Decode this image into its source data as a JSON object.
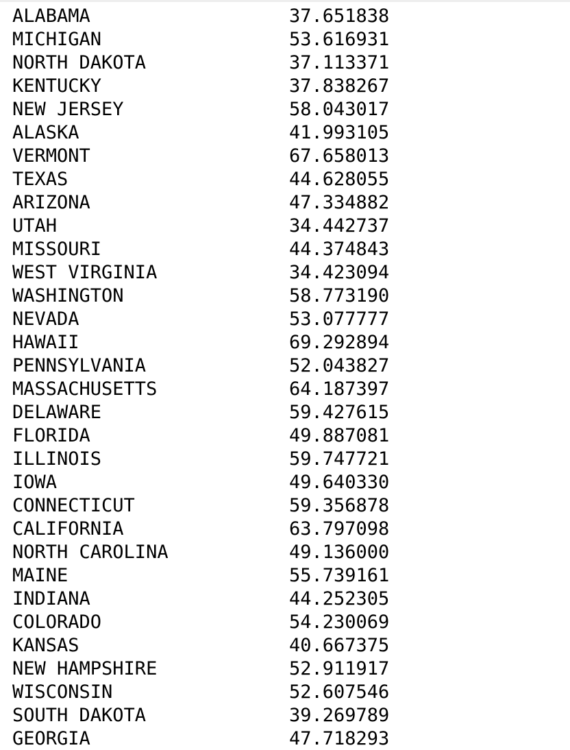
{
  "rows": [
    {
      "state": "ALABAMA",
      "value": "37.651838"
    },
    {
      "state": "MICHIGAN",
      "value": "53.616931"
    },
    {
      "state": "NORTH DAKOTA",
      "value": "37.113371"
    },
    {
      "state": "KENTUCKY",
      "value": "37.838267"
    },
    {
      "state": "NEW JERSEY",
      "value": "58.043017"
    },
    {
      "state": "ALASKA",
      "value": "41.993105"
    },
    {
      "state": "VERMONT",
      "value": "67.658013"
    },
    {
      "state": "TEXAS",
      "value": "44.628055"
    },
    {
      "state": "ARIZONA",
      "value": "47.334882"
    },
    {
      "state": "UTAH",
      "value": "34.442737"
    },
    {
      "state": "MISSOURI",
      "value": "44.374843"
    },
    {
      "state": "WEST VIRGINIA",
      "value": "34.423094"
    },
    {
      "state": "WASHINGTON",
      "value": "58.773190"
    },
    {
      "state": "NEVADA",
      "value": "53.077777"
    },
    {
      "state": "HAWAII",
      "value": "69.292894"
    },
    {
      "state": "PENNSYLVANIA",
      "value": "52.043827"
    },
    {
      "state": "MASSACHUSETTS",
      "value": "64.187397"
    },
    {
      "state": "DELAWARE",
      "value": "59.427615"
    },
    {
      "state": "FLORIDA",
      "value": "49.887081"
    },
    {
      "state": "ILLINOIS",
      "value": "59.747721"
    },
    {
      "state": "IOWA",
      "value": "49.640330"
    },
    {
      "state": "CONNECTICUT",
      "value": "59.356878"
    },
    {
      "state": "CALIFORNIA",
      "value": "63.797098"
    },
    {
      "state": "NORTH CAROLINA",
      "value": "49.136000"
    },
    {
      "state": "MAINE",
      "value": "55.739161"
    },
    {
      "state": "INDIANA",
      "value": "44.252305"
    },
    {
      "state": "COLORADO",
      "value": "54.230069"
    },
    {
      "state": "KANSAS",
      "value": "40.667375"
    },
    {
      "state": "NEW HAMPSHIRE",
      "value": "52.911917"
    },
    {
      "state": "WISCONSIN",
      "value": "52.607546"
    },
    {
      "state": "SOUTH DAKOTA",
      "value": "39.269789"
    },
    {
      "state": "GEORGIA",
      "value": "47.718293"
    }
  ]
}
